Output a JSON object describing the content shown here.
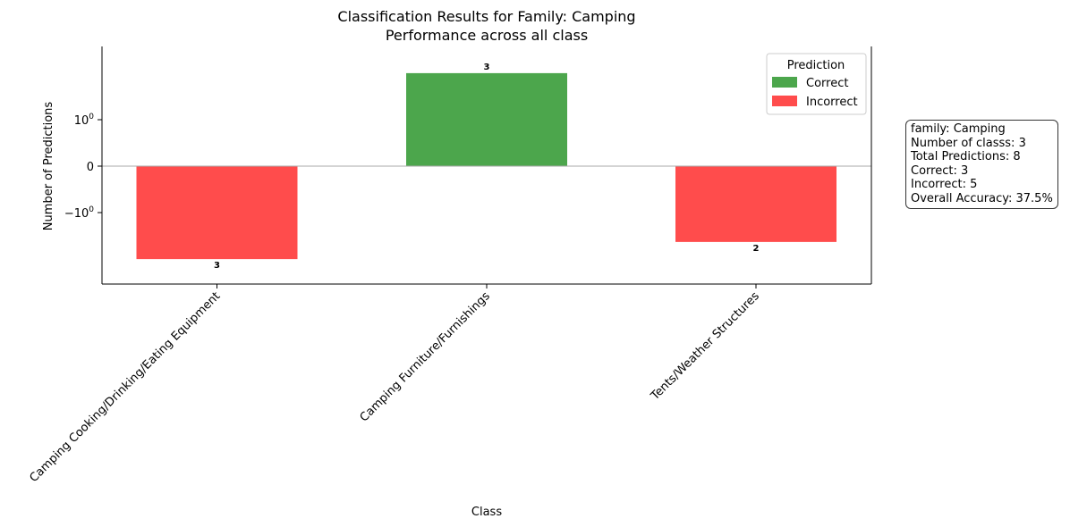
{
  "chart_data": {
    "type": "bar",
    "title": "Classification Results for Family: Camping",
    "subtitle": "Performance across all class",
    "xlabel": "Class",
    "ylabel": "Number of Predictions",
    "yscale": "symlog",
    "y_ticks": [
      {
        "value": 1,
        "base": "10",
        "exp": "0"
      },
      {
        "value": 0,
        "label": "0"
      },
      {
        "value": -1,
        "base": "−10",
        "exp": "0"
      }
    ],
    "categories": [
      "Camping Cooking/Drinking/Eating Equipment",
      "Camping Furniture/Furnishings",
      "Tents/Weather Structures"
    ],
    "series": [
      {
        "name": "Correct",
        "color": "#4ca64c",
        "values": [
          0,
          3,
          0
        ]
      },
      {
        "name": "Incorrect",
        "color": "#ff4c4c",
        "values": [
          -3,
          0,
          -2
        ]
      }
    ],
    "bar_labels": [
      "3",
      "3",
      "2"
    ],
    "legend": {
      "title": "Prediction",
      "placement": "upper-right"
    },
    "grid": false
  },
  "info_box": {
    "lines": [
      "family: Camping",
      "Number of classs: 3",
      "Total Predictions: 8",
      "Correct: 3",
      "Incorrect: 5",
      "Overall Accuracy: 37.5%"
    ]
  }
}
